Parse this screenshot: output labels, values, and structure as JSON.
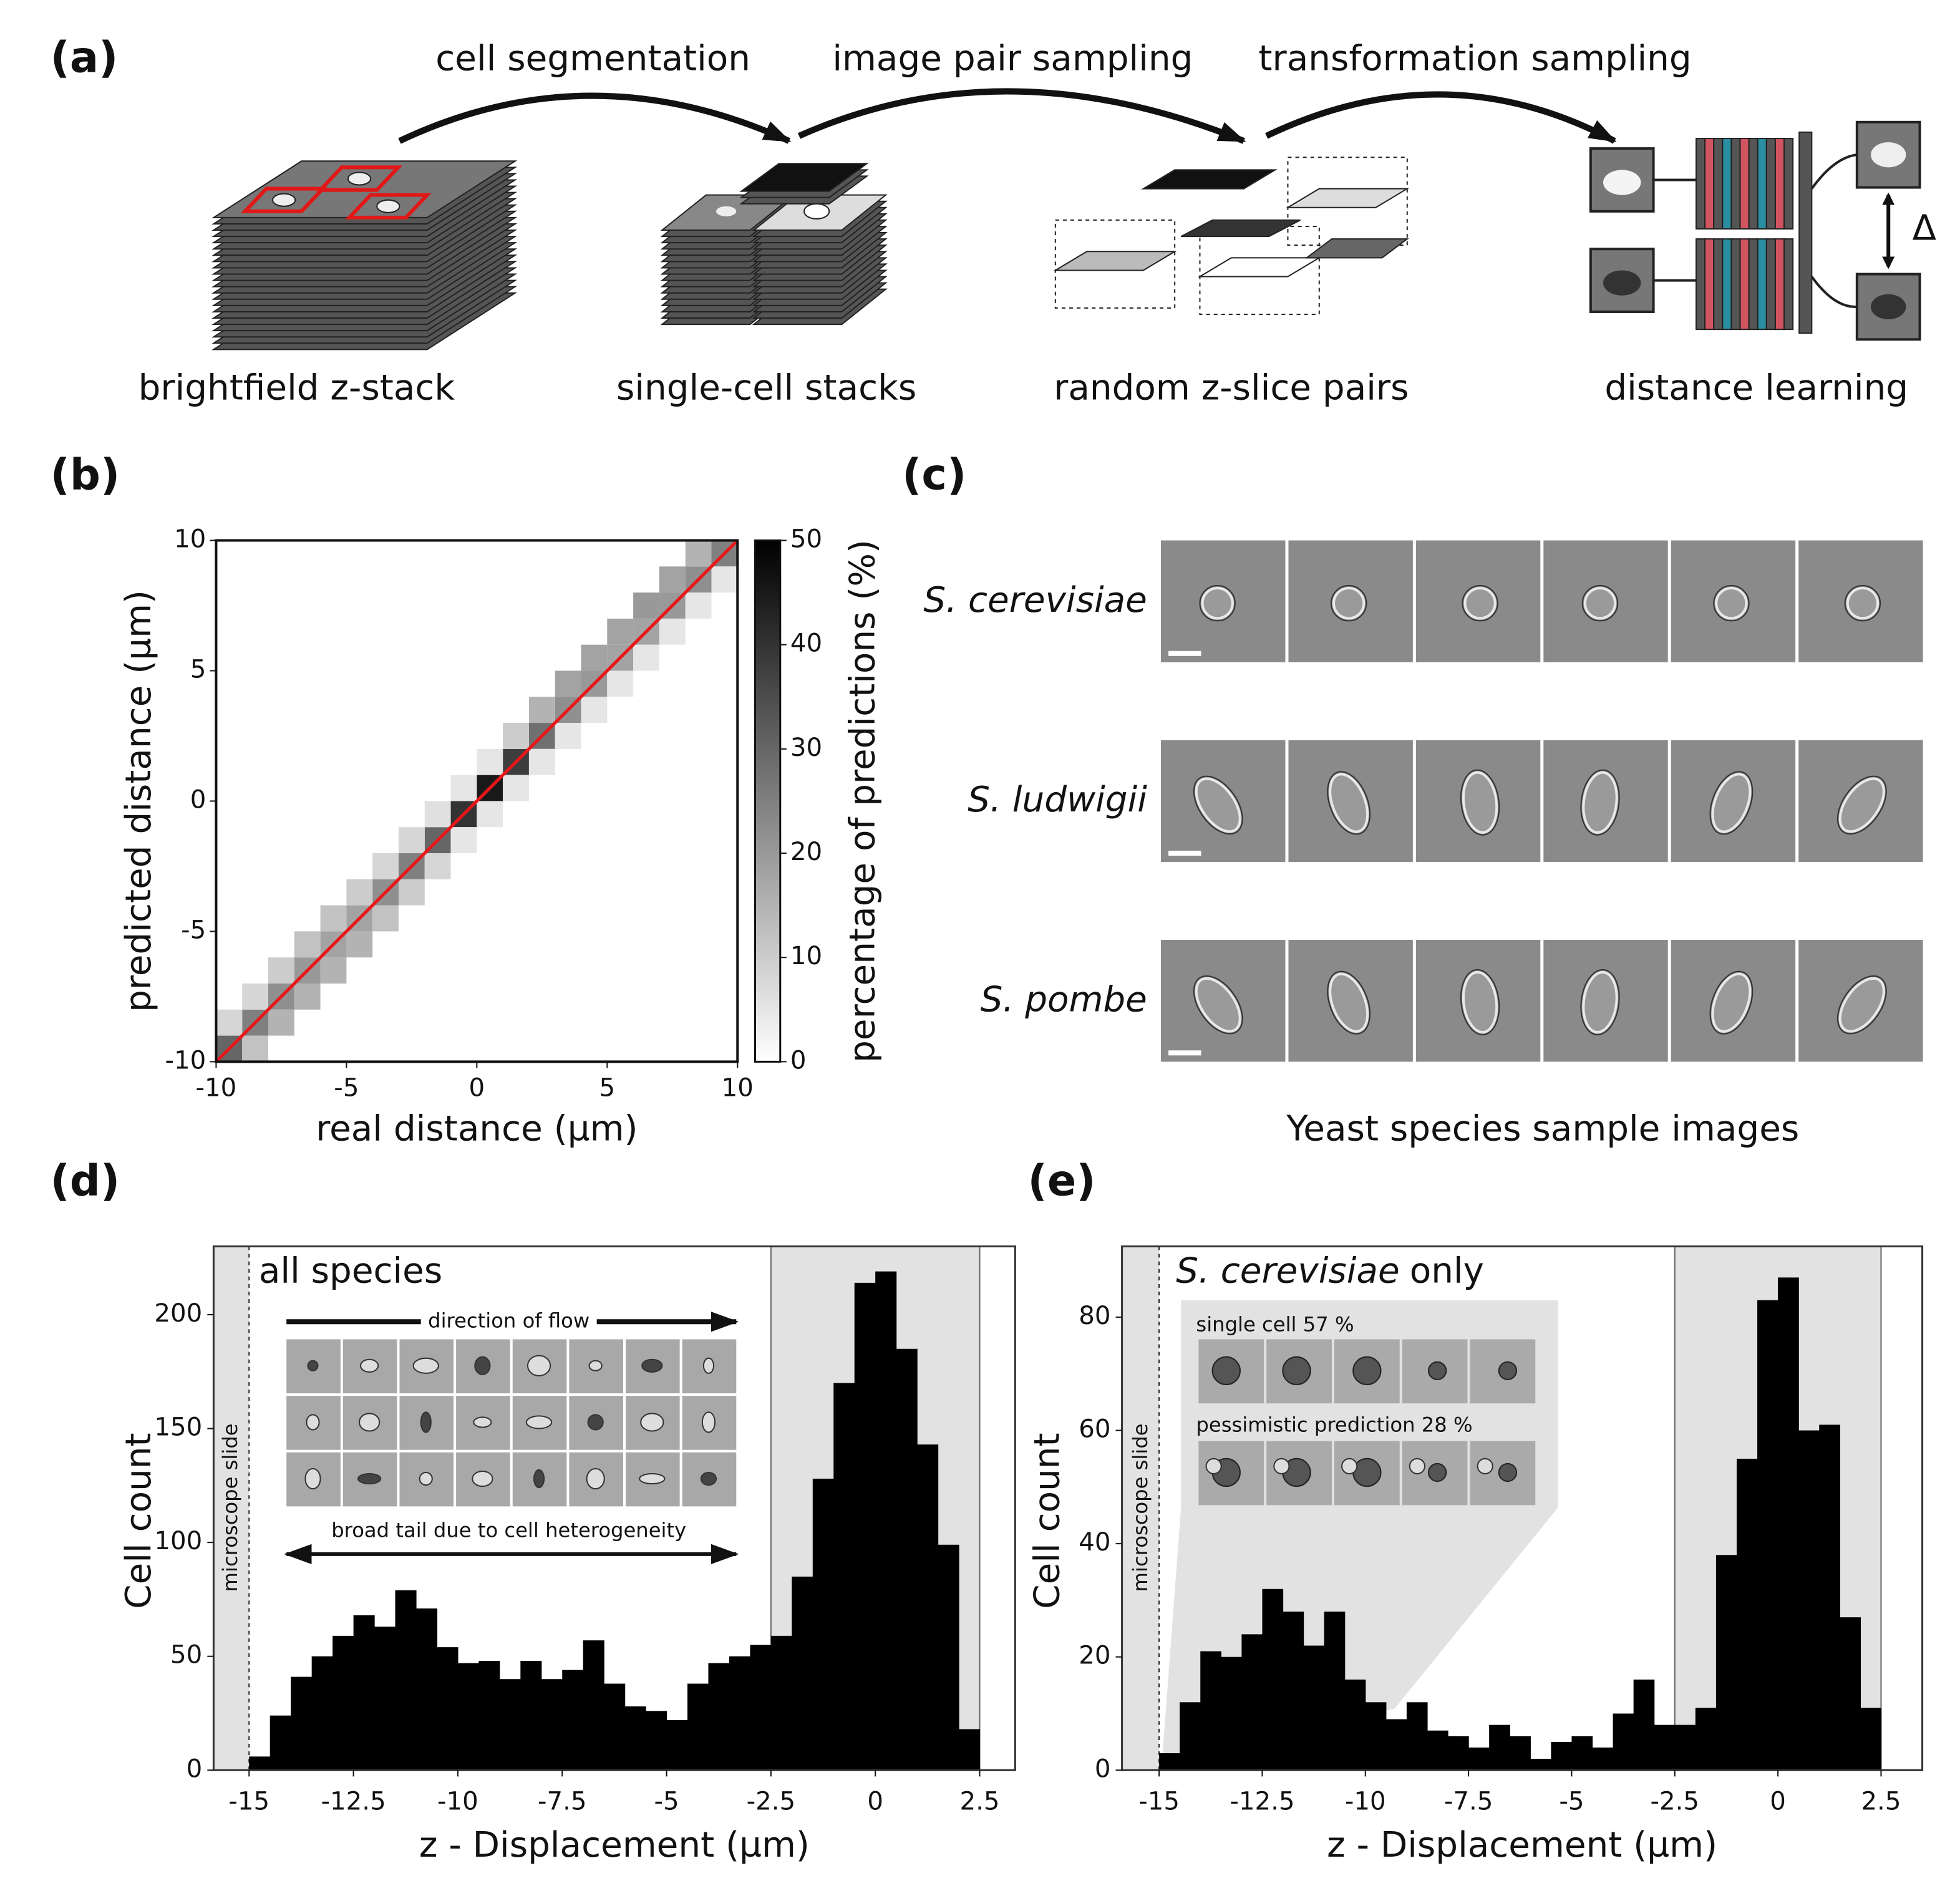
{
  "panel_a": {
    "label": "(a)",
    "steps": [
      "cell segmentation",
      "image pair sampling",
      "transformation sampling"
    ],
    "stages": [
      "brightfield z-stack",
      "single-cell stacks",
      "random z-slice pairs",
      "distance learning"
    ],
    "delta": "Δ"
  },
  "panel_c": {
    "label": "(c)",
    "species": [
      "S. cerevisiae",
      "S. ludwigii",
      "S. pombe"
    ],
    "caption": "Yeast species sample images"
  },
  "chart_data": [
    {
      "type": "heatmap",
      "label": "(b)",
      "xlabel": "real distance (µm)",
      "ylabel": "predicted distance (µm)",
      "zlabel": "percentage of predictions (%)",
      "xlim": [
        -10,
        10
      ],
      "ylim": [
        -10,
        10
      ],
      "xticks": [
        -10,
        -5,
        0,
        5,
        10
      ],
      "yticks": [
        -10,
        -5,
        0,
        5,
        10
      ],
      "zlim": [
        0,
        50
      ],
      "zticks": [
        0,
        10,
        20,
        30,
        40,
        50
      ],
      "bin_width": 1,
      "line_color": "#e8161b",
      "cells": {
        "x": [
          -10,
          -9,
          -8,
          -7,
          -6,
          -5,
          -4,
          -3,
          -2,
          -1,
          0,
          1,
          2,
          3,
          4,
          5,
          6,
          7,
          8,
          9,
          -10,
          -9,
          -8,
          -7,
          -6,
          -5,
          -4,
          -3,
          -2,
          -1,
          0,
          1,
          2,
          3,
          4,
          5,
          6,
          7,
          8,
          -9,
          -8,
          -7,
          -6,
          -5,
          -4,
          -3,
          -2,
          -1,
          0,
          1,
          2,
          3,
          4,
          5,
          6,
          7,
          8,
          9
        ],
        "y": [
          -10,
          -9,
          -8,
          -7,
          -6,
          -5,
          -4,
          -3,
          -2,
          -1,
          0,
          1,
          2,
          3,
          4,
          5,
          6,
          7,
          8,
          9,
          -9,
          -8,
          -7,
          -6,
          -5,
          -4,
          -3,
          -2,
          -1,
          0,
          1,
          2,
          3,
          4,
          5,
          6,
          7,
          8,
          9,
          -10,
          -9,
          -8,
          -7,
          -6,
          -5,
          -4,
          -3,
          -2,
          -1,
          0,
          1,
          2,
          3,
          4,
          5,
          6,
          7,
          8
        ],
        "values": [
          30,
          25,
          22,
          20,
          18,
          18,
          22,
          25,
          30,
          40,
          45,
          38,
          28,
          22,
          20,
          18,
          18,
          20,
          22,
          25,
          8,
          8,
          10,
          12,
          12,
          10,
          8,
          8,
          6,
          5,
          5,
          10,
          15,
          18,
          18,
          18,
          20,
          18,
          15,
          12,
          15,
          15,
          15,
          15,
          12,
          10,
          8,
          5,
          5,
          5,
          5,
          5,
          5,
          5,
          5,
          5,
          5,
          5
        ]
      }
    },
    {
      "type": "histogram",
      "label": "(d)",
      "title": "all species",
      "xlabel": "z - Displacement (µm)",
      "ylabel": "Cell count",
      "xlim": [
        -15.85,
        3.35
      ],
      "ylim": [
        0,
        230
      ],
      "xticks": [
        -15,
        -12.5,
        -10,
        -7.5,
        -5,
        -2.5,
        0,
        2.5
      ],
      "yticks": [
        0,
        50,
        100,
        150,
        200
      ],
      "bins": [
        -15,
        -14.5,
        -14,
        -13.5,
        -13,
        -12.5,
        -12,
        -11.5,
        -11,
        -10.5,
        -10,
        -9.5,
        -9,
        -8.5,
        -8,
        -7.5,
        -7,
        -6.5,
        -6,
        -5.5,
        -5,
        -4.5,
        -4,
        -3.5,
        -3,
        -2.5,
        -2,
        -1.5,
        -1,
        -0.5,
        0,
        0.5,
        1,
        1.5,
        2,
        2.5
      ],
      "values": [
        6,
        24,
        41,
        50,
        59,
        68,
        63,
        79,
        71,
        54,
        47,
        48,
        40,
        48,
        40,
        44,
        57,
        38,
        28,
        26,
        22,
        38,
        47,
        50,
        55,
        59,
        85,
        128,
        170,
        214,
        219,
        185,
        143,
        99,
        18
      ],
      "color": "#000000",
      "shaded": [
        [
          -15.85,
          -15
        ],
        [
          -2.5,
          2.5
        ]
      ],
      "annotations": {
        "slide": "microscope slide",
        "flow": "direction of flow",
        "tail": "broad tail due to cell heterogeneity"
      }
    },
    {
      "type": "histogram",
      "label": "(e)",
      "title": {
        "species": "S. cerevisiae",
        "text": "only"
      },
      "xlabel": "z - Displacement (µm)",
      "ylabel": "Cell count",
      "xlim": [
        -15.9,
        3.5
      ],
      "ylim": [
        0,
        92.5
      ],
      "xticks": [
        -15,
        -12.5,
        -10,
        -7.5,
        -5,
        -2.5,
        0,
        2.5
      ],
      "yticks": [
        0,
        20,
        40,
        60,
        80
      ],
      "bins": [
        -15,
        -14.5,
        -14,
        -13.5,
        -13,
        -12.5,
        -12,
        -11.5,
        -11,
        -10.5,
        -10,
        -9.5,
        -9,
        -8.5,
        -8,
        -7.5,
        -7,
        -6.5,
        -6,
        -5.5,
        -5,
        -4.5,
        -4,
        -3.5,
        -3,
        -2.5,
        -2,
        -1.5,
        -1,
        -0.5,
        0,
        0.5,
        1,
        1.5,
        2,
        2.5
      ],
      "values": [
        3,
        12,
        21,
        20,
        24,
        32,
        28,
        22,
        28,
        16,
        12,
        9,
        12,
        7,
        6,
        4,
        8,
        6,
        2,
        5,
        6,
        4,
        10,
        16,
        8,
        8,
        11,
        38,
        55,
        83,
        87,
        60,
        61,
        27,
        11
      ],
      "color": "#000000",
      "shaded": [
        [
          -15.9,
          -15
        ],
        [
          -2.5,
          2.5
        ]
      ],
      "annotations": {
        "slide": "microscope slide",
        "single": "single cell 57 %",
        "pessimistic": "pessimistic prediction 28 %"
      }
    }
  ]
}
